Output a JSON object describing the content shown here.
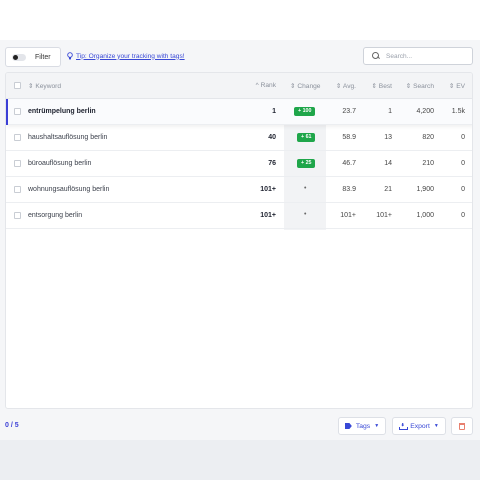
{
  "toolbar": {
    "filter_label": "Filter",
    "tip_text": "Tip: Organize your tracking with tags!",
    "search_placeholder": "Search..."
  },
  "table": {
    "columns": {
      "keyword": "⇕ Keyword",
      "rank": "^ Rank",
      "change": "⇕ Change",
      "avg": "⇕ Avg.",
      "best": "⇕ Best",
      "search": "⇕ Search",
      "ev": "⇕ EV"
    },
    "rows": [
      {
        "keyword": "entrümpelung berlin",
        "rank": "1",
        "change": "+ 100",
        "avg": "23.7",
        "best": "1",
        "search": "4,200",
        "ev": "1.5k",
        "active": true
      },
      {
        "keyword": "haushaltsauflösung berlin",
        "rank": "40",
        "change": "+ 61",
        "avg": "58.9",
        "best": "13",
        "search": "820",
        "ev": "0"
      },
      {
        "keyword": "büroauflösung berlin",
        "rank": "76",
        "change": "+ 25",
        "avg": "46.7",
        "best": "14",
        "search": "210",
        "ev": "0"
      },
      {
        "keyword": "wohnungsauflösung berlin",
        "rank": "101+",
        "change": "•",
        "avg": "83.9",
        "best": "21",
        "search": "1,900",
        "ev": "0"
      },
      {
        "keyword": "entsorgung berlin",
        "rank": "101+",
        "change": "•",
        "avg": "101+",
        "best": "101+",
        "search": "1,000",
        "ev": "0"
      }
    ]
  },
  "footer": {
    "selected_count": "0 / 5",
    "tags_label": "Tags",
    "export_label": "Export"
  },
  "colors": {
    "accent": "#3b3fd6",
    "positive_badge": "#1fa64a",
    "delete": "#e8806f"
  }
}
